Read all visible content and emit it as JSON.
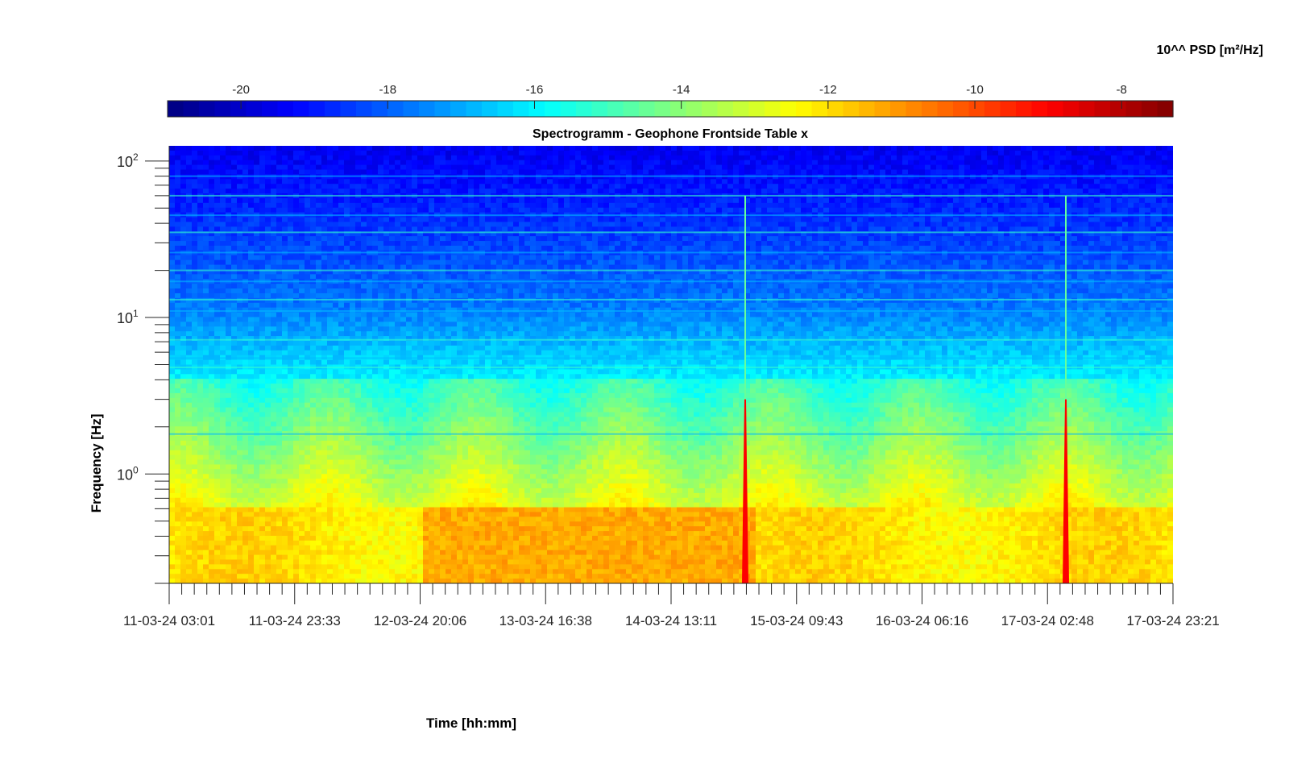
{
  "chart_data": {
    "type": "heatmap",
    "title": "Spectrogramm - Geophone Frontside Table x",
    "xlabel": "Time [hh:mm]",
    "ylabel": "Frequency [Hz]",
    "colorbar_label": "10^^ PSD [m²/Hz]",
    "colormap": "jet",
    "colorbar_ticks": [
      "-20",
      "-18",
      "-16",
      "-14",
      "-12",
      "-10",
      "-8"
    ],
    "colorbar_range": [
      -21,
      -7.3
    ],
    "x_tick_labels": [
      "11-03-24 03:01",
      "11-03-24 23:33",
      "12-03-24 20:06",
      "13-03-24 16:38",
      "14-03-24 13:11",
      "15-03-24 09:43",
      "16-03-24 06:16",
      "17-03-24 02:48",
      "17-03-24 23:21"
    ],
    "y_scale": "log",
    "y_range": [
      0.2,
      125
    ],
    "y_tick_labels": [
      {
        "base": "10",
        "exp": "2",
        "value": 100
      },
      {
        "base": "10",
        "exp": "1",
        "value": 10
      },
      {
        "base": "10",
        "exp": "0",
        "value": 1
      }
    ],
    "x_range": [
      "11-03-24 03:01",
      "17-03-24 23:21"
    ],
    "features": {
      "low_band_upper_hz": 0.6,
      "low_band_level": -11.5,
      "high_freq_level": -19.5,
      "mid_freq_level": -16,
      "spikes_time": [
        "15-03-24 02:48",
        "17-03-24 05:16"
      ],
      "spike_peak_level": -9
    },
    "grid": false
  },
  "colors": {
    "background": "#ffffff",
    "axis": "#262626"
  }
}
